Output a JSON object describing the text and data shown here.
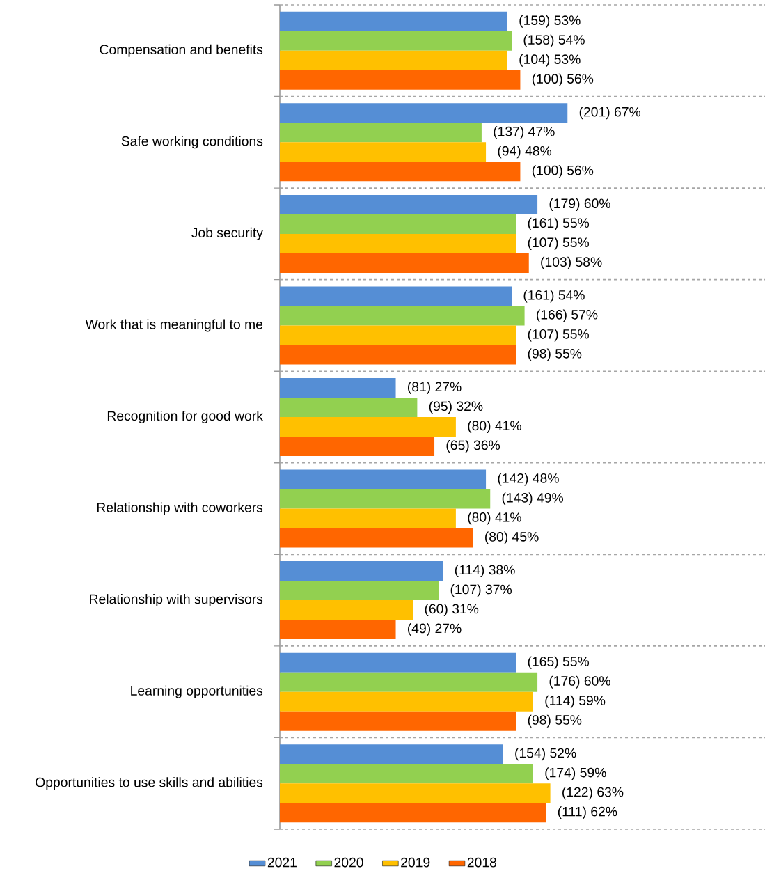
{
  "chart_data": {
    "type": "bar",
    "orientation": "horizontal",
    "categories": [
      "Compensation and benefits",
      "Safe working conditions",
      "Job security",
      "Work that is meaningful to me",
      "Recognition for good work",
      "Relationship with coworkers",
      "Relationship with supervisors",
      "Learning opportunities",
      "Opportunities to use skills and abilities"
    ],
    "xlim": [
      0,
      113
    ],
    "grid": "y",
    "legend": "bottom",
    "series": [
      {
        "name": "2021",
        "color": "#558ed5",
        "values": [
          53,
          67,
          60,
          54,
          27,
          48,
          38,
          55,
          52
        ],
        "value_labels": [
          "(159) 53%",
          "(201) 67%",
          "(179) 60%",
          "(161) 54%",
          "(81) 27%",
          "(142) 48%",
          "(114) 38%",
          "(165) 55%",
          "(154) 52%"
        ]
      },
      {
        "name": "2020",
        "color": "#92d050",
        "values": [
          54,
          47,
          55,
          57,
          32,
          49,
          37,
          60,
          59
        ],
        "value_labels": [
          "(158) 54%",
          "(137) 47%",
          "(161) 55%",
          "(166) 57%",
          "(95) 32%",
          "(143) 49%",
          "(107) 37%",
          "(176) 60%",
          "(174) 59%"
        ]
      },
      {
        "name": "2019",
        "color": "#ffc000",
        "values": [
          53,
          48,
          55,
          55,
          41,
          41,
          31,
          59,
          63
        ],
        "value_labels": [
          "(104) 53%",
          "(94) 48%",
          "(107) 55%",
          "(107) 55%",
          "(80) 41%",
          "(80) 41%",
          "(60) 31%",
          "(114) 59%",
          "(122) 63%"
        ]
      },
      {
        "name": "2018",
        "color": "#ff6600",
        "values": [
          56,
          56,
          58,
          55,
          36,
          45,
          27,
          55,
          62
        ],
        "value_labels": [
          "(100) 56%",
          "(100) 56%",
          "(103) 58%",
          "(98) 55%",
          "(65) 36%",
          "(80) 45%",
          "(49) 27%",
          "(98) 55%",
          "(111) 62%"
        ]
      }
    ]
  }
}
